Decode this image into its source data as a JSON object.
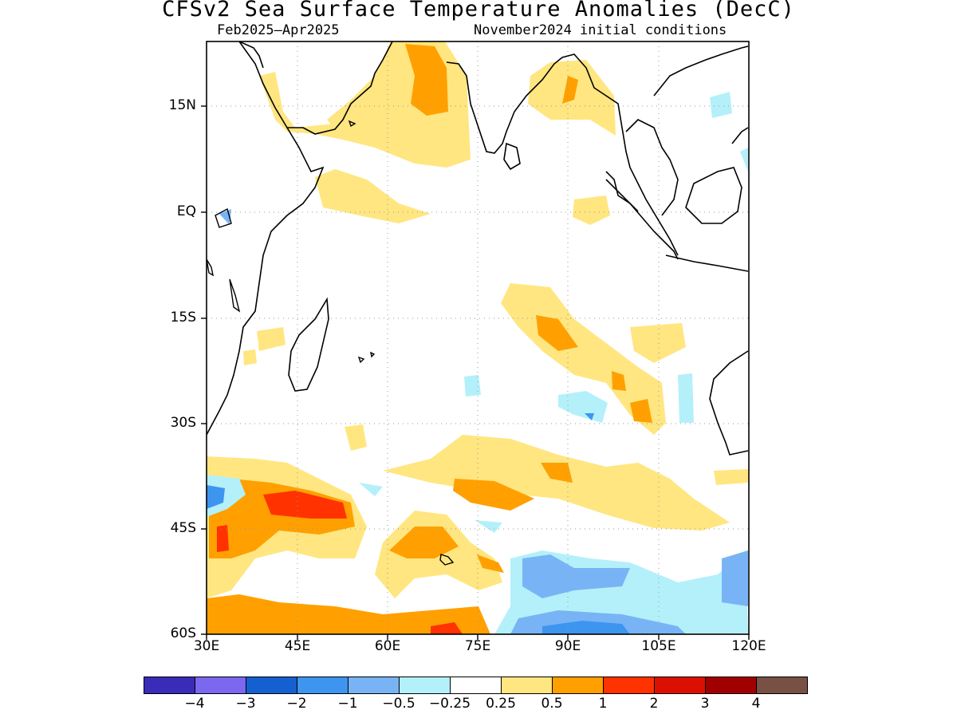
{
  "title": "CFSv2 Sea Surface Temperature Anomalies (DecC)",
  "subtitle_left": "Feb2025–Apr2025",
  "subtitle_right": "November2024 initial conditions",
  "lat_labels": [
    "15N",
    "EQ",
    "15S",
    "30S",
    "45S",
    "60S"
  ],
  "lon_labels": [
    "30E",
    "45E",
    "60E",
    "75E",
    "90E",
    "105E",
    "120E"
  ],
  "colorbar": {
    "colors": [
      "#3a2bb8",
      "#7b68ee",
      "#1560d0",
      "#3d95f0",
      "#78b4f5",
      "#b4f0fa",
      "#ffffff",
      "#ffe680",
      "#ffa000",
      "#ff3200",
      "#dc1000",
      "#a00000",
      "#785044"
    ],
    "labels": [
      "−4",
      "−3",
      "−2",
      "−1",
      "−0.5",
      "−0.25",
      "0.25",
      "0.5",
      "1",
      "2",
      "3",
      "4"
    ]
  }
}
